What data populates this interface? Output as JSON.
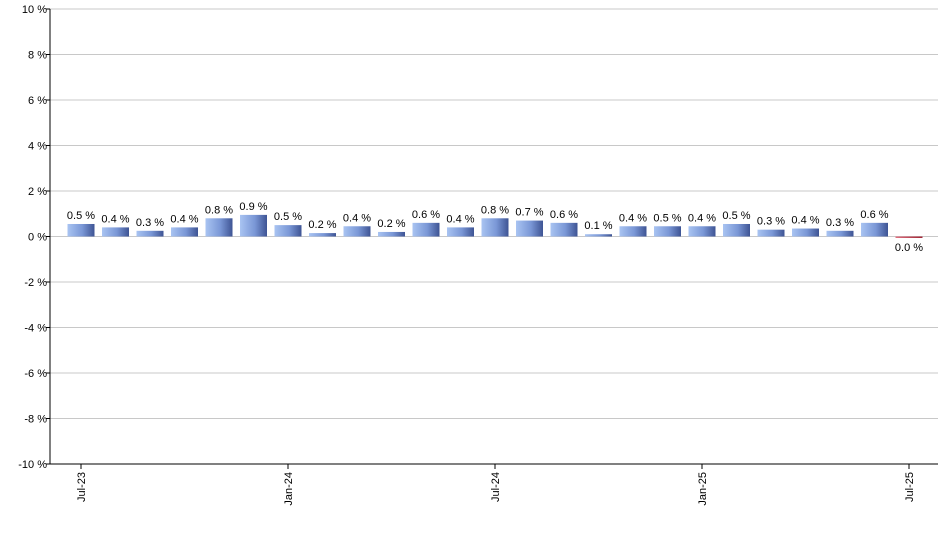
{
  "chart_data": {
    "type": "bar",
    "title": "",
    "xlabel": "",
    "ylabel": "",
    "ylim": [
      -10,
      10
    ],
    "y_ticks": [
      "10 %",
      "8 %",
      "6 %",
      "4 %",
      "2 %",
      "0 %",
      "-2 %",
      "-4 %",
      "-6 %",
      "-8 %",
      "-10 %"
    ],
    "y_tick_values": [
      10,
      8,
      6,
      4,
      2,
      0,
      -2,
      -4,
      -6,
      -8,
      -10
    ],
    "grid": true,
    "x_ticks": [
      {
        "label": "Jul-23",
        "index": 0
      },
      {
        "label": "Jan-24",
        "index": 6
      },
      {
        "label": "Jul-24",
        "index": 12
      },
      {
        "label": "Jan-25",
        "index": 18
      },
      {
        "label": "Jul-25",
        "index": 24
      }
    ],
    "categories": [
      "Jul-23",
      "Aug-23",
      "Sep-23",
      "Oct-23",
      "Nov-23",
      "Dec-23",
      "Jan-24",
      "Feb-24",
      "Mar-24",
      "Apr-24",
      "May-24",
      "Jun-24",
      "Jul-24",
      "Aug-24",
      "Sep-24",
      "Oct-24",
      "Nov-24",
      "Dec-24",
      "Jan-25",
      "Feb-25",
      "Mar-25",
      "Apr-25",
      "May-25",
      "Jun-25",
      "Jul-25"
    ],
    "values": [
      0.55,
      0.4,
      0.25,
      0.4,
      0.8,
      0.95,
      0.5,
      0.15,
      0.45,
      0.2,
      0.6,
      0.4,
      0.8,
      0.7,
      0.6,
      0.1,
      0.45,
      0.45,
      0.45,
      0.55,
      0.3,
      0.35,
      0.25,
      0.6,
      -0.03
    ],
    "data_labels": [
      "0.5 %",
      "0.4 %",
      "0.3 %",
      "0.4 %",
      "0.8 %",
      "0.9 %",
      "0.5 %",
      "0.2 %",
      "0.4 %",
      "0.2 %",
      "0.6 %",
      "0.4 %",
      "0.8 %",
      "0.7 %",
      "0.6 %",
      "0.1 %",
      "0.4 %",
      "0.5 %",
      "0.4 %",
      "0.5 %",
      "0.3 %",
      "0.4 %",
      "0.3 %",
      "0.6 %",
      "0.0 %"
    ],
    "colors": {
      "positive_light": "#a9c4f2",
      "positive_dark": "#4a62a3",
      "negative": "#c0394a",
      "grid": "#c8c8c8",
      "axis": "#000000"
    }
  }
}
